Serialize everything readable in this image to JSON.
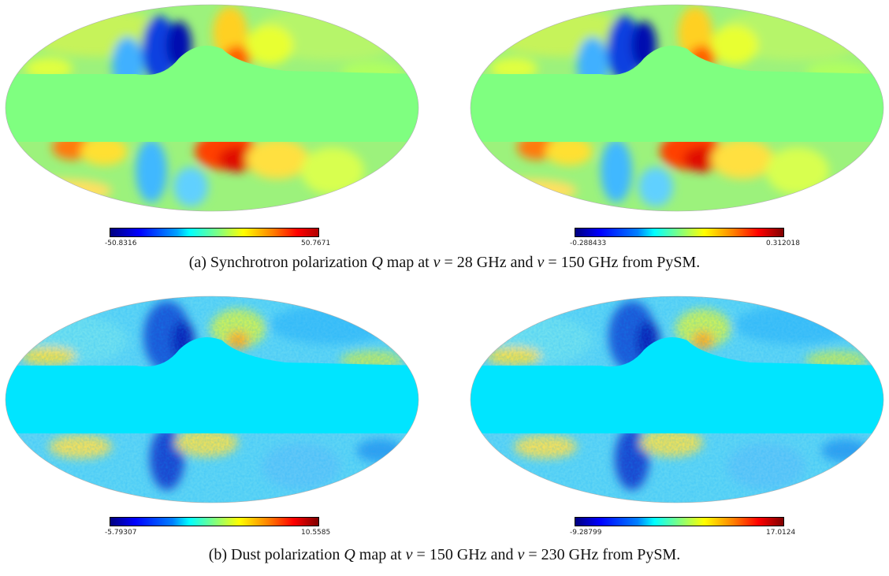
{
  "figure": {
    "panels": [
      {
        "id": "a",
        "label": "(a)",
        "caption_parts": [
          "Synchrotron polarization ",
          "Q",
          " map at ",
          "ν",
          " = 28 GHz and ",
          "ν",
          " = 150 GHz from PySM."
        ],
        "maps": [
          {
            "colorbar_min": "-50.8316",
            "colorbar_max": "50.7671",
            "mask_color": "#7fff80"
          },
          {
            "colorbar_min": "-0.288433",
            "colorbar_max": "0.312018",
            "mask_color": "#7fff80"
          }
        ]
      },
      {
        "id": "b",
        "label": "(b)",
        "caption_parts": [
          "Dust polarization ",
          "Q",
          " map at ",
          "ν",
          " = 150 GHz and ",
          "ν",
          " = 230 GHz from PySM."
        ],
        "maps": [
          {
            "colorbar_min": "-5.79307",
            "colorbar_max": "10.5585",
            "mask_color": "#00e5ff"
          },
          {
            "colorbar_min": "-9.28799",
            "colorbar_max": "17.0124",
            "mask_color": "#00e5ff"
          }
        ]
      }
    ]
  }
}
